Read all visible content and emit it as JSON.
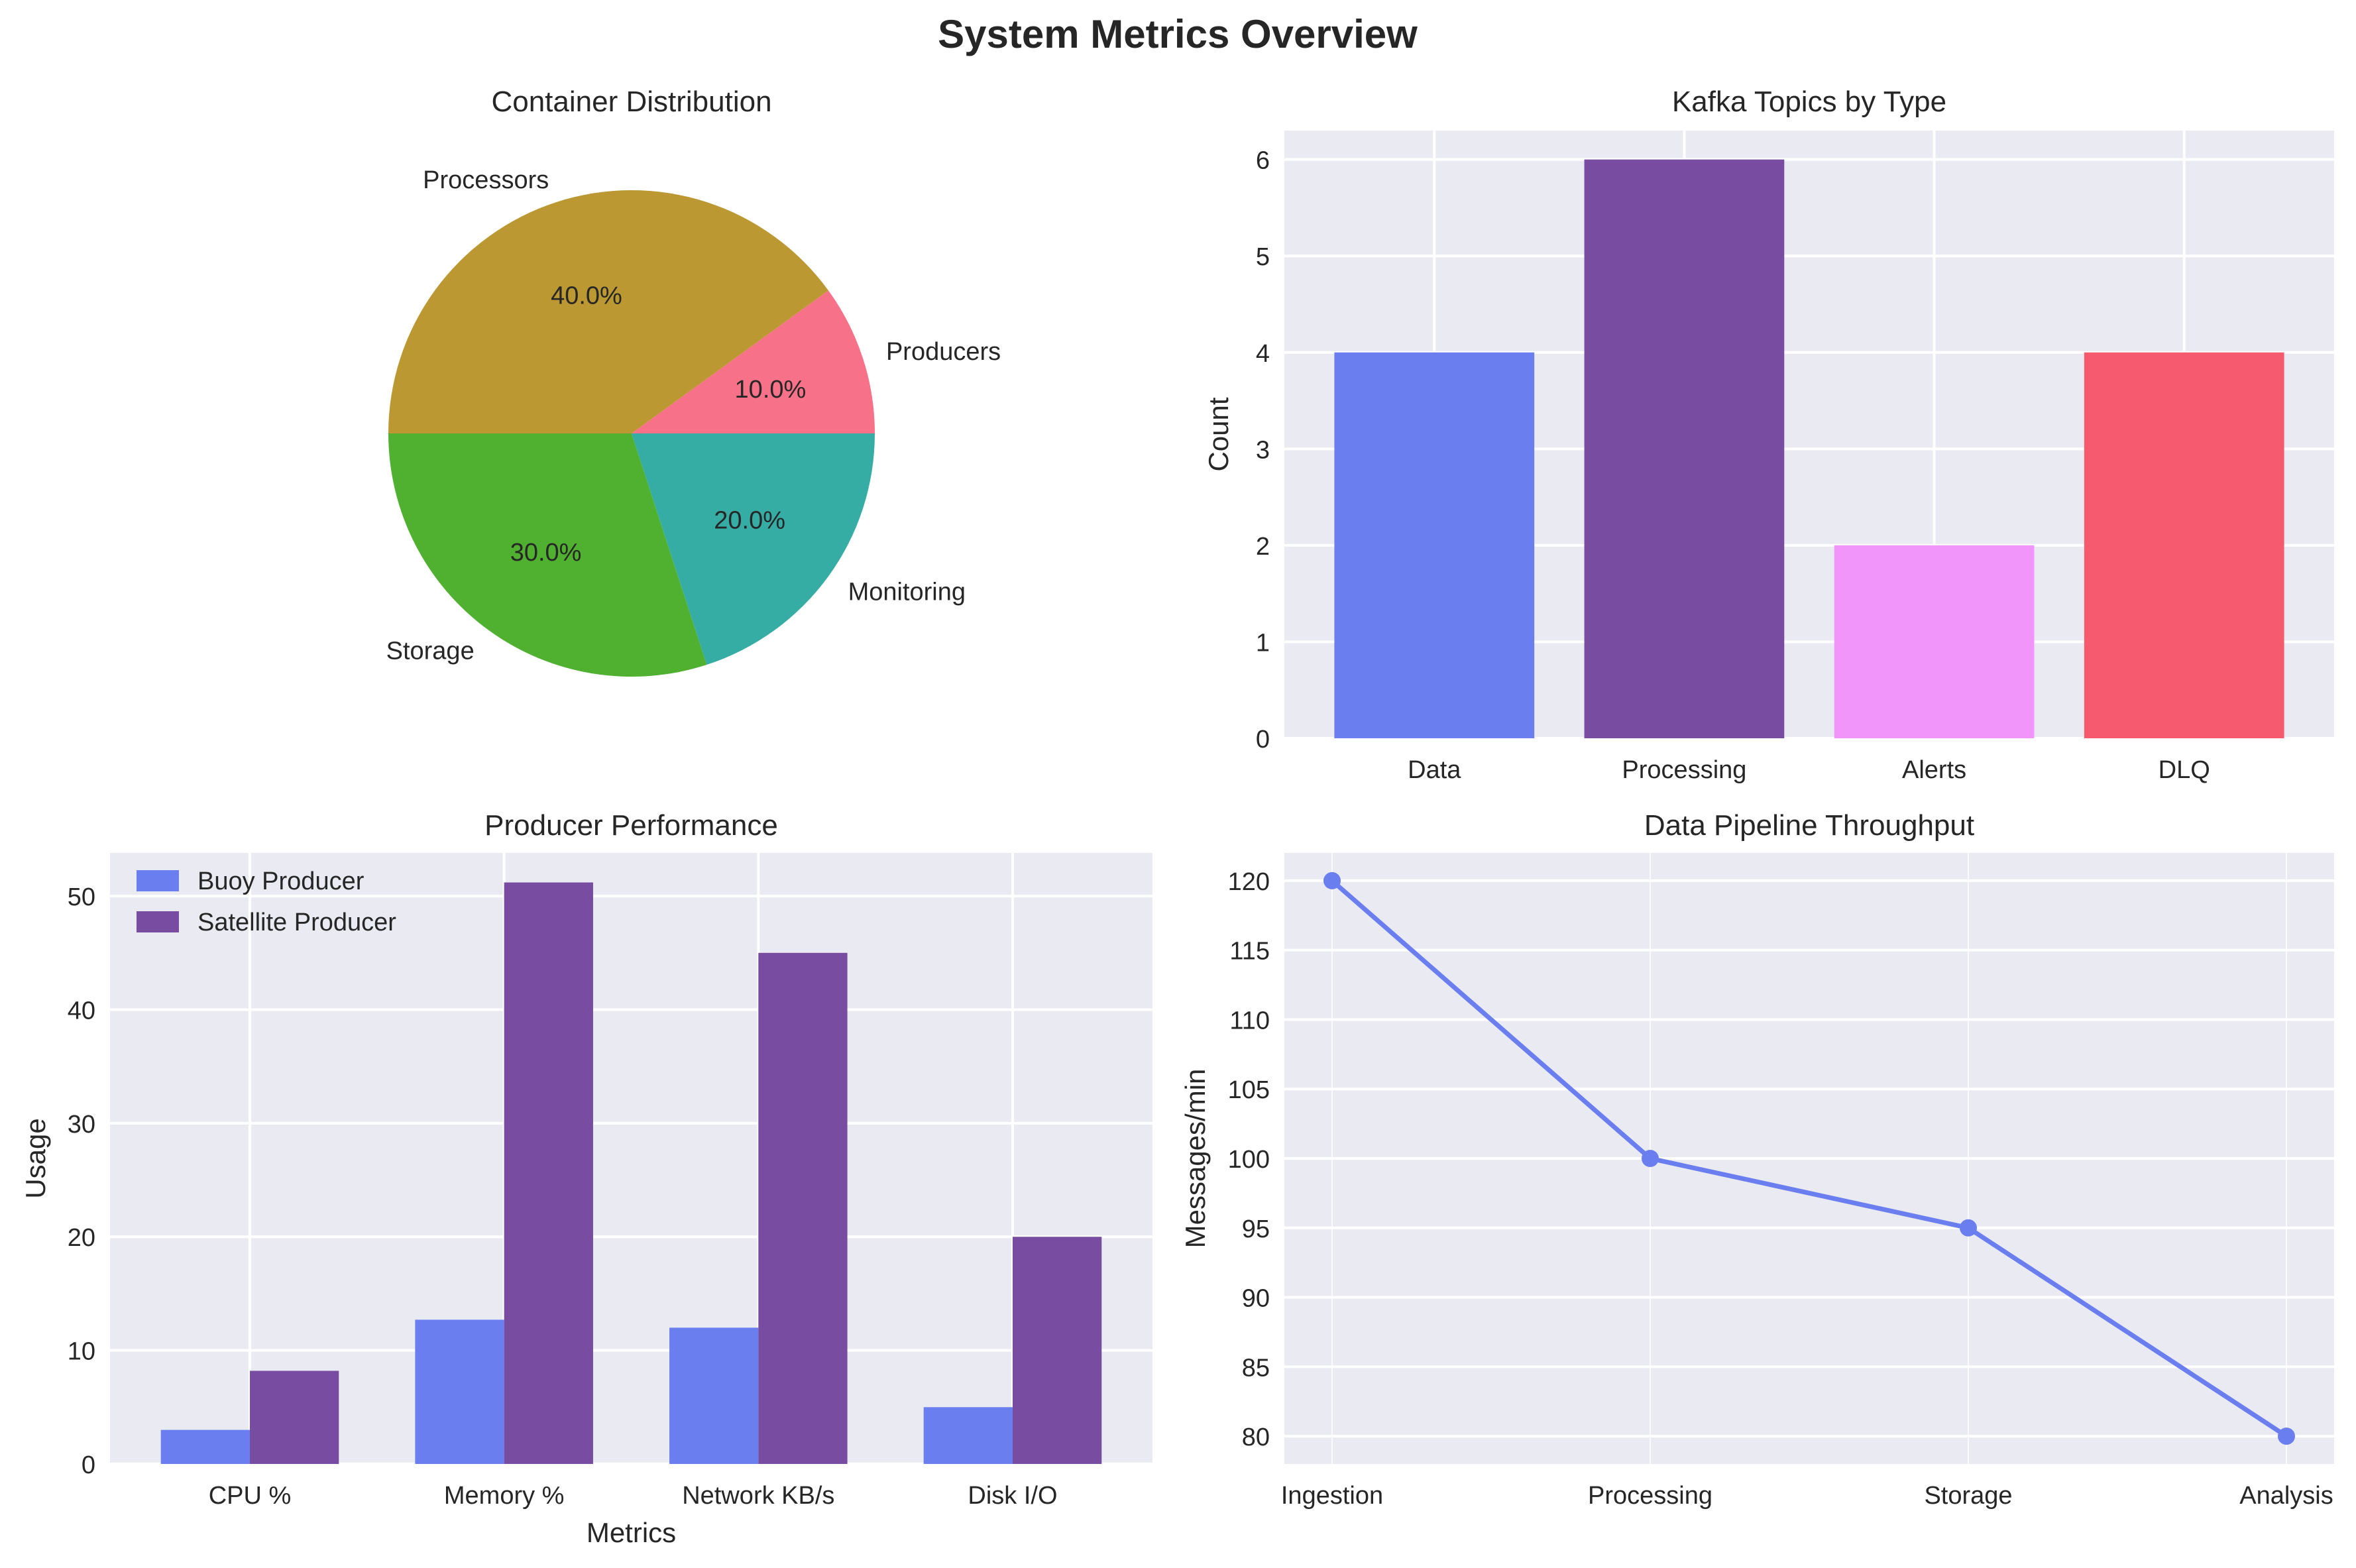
{
  "figure": {
    "title": "System Metrics Overview"
  },
  "chart_data": [
    {
      "type": "pie",
      "title": "Container Distribution",
      "labels": [
        "Producers",
        "Processors",
        "Storage",
        "Monitoring"
      ],
      "values": [
        10,
        40,
        30,
        20
      ],
      "pct_labels": [
        "10.0%",
        "40.0%",
        "30.0%",
        "20.0%"
      ],
      "colors": [
        "#f77189",
        "#bb9832",
        "#50b131",
        "#36ada4"
      ]
    },
    {
      "type": "bar",
      "title": "Kafka Topics by Type",
      "categories": [
        "Data",
        "Processing",
        "Alerts",
        "DLQ"
      ],
      "values": [
        4,
        6,
        2,
        4
      ],
      "colors": [
        "#6a7ef0",
        "#774ca1",
        "#f195fa",
        "#f65a6f"
      ],
      "xlabel": "",
      "ylabel": "Count",
      "ylim": [
        0,
        6.3
      ],
      "yticks": [
        0,
        1,
        2,
        3,
        4,
        5,
        6
      ],
      "grid": true
    },
    {
      "type": "bar",
      "title": "Producer Performance",
      "categories": [
        "CPU %",
        "Memory %",
        "Network KB/s",
        "Disk I/O"
      ],
      "series": [
        {
          "name": "Buoy Producer",
          "values": [
            3.0,
            12.7,
            12.0,
            5.0
          ],
          "color": "#6a7ef0"
        },
        {
          "name": "Satellite Producer",
          "values": [
            8.2,
            51.2,
            45.0,
            20.0
          ],
          "color": "#774ca1"
        }
      ],
      "xlabel": "Metrics",
      "ylabel": "Usage",
      "ylim": [
        0,
        53.8
      ],
      "yticks": [
        0,
        10,
        20,
        30,
        40,
        50
      ],
      "legend": "upper-left",
      "grid": true
    },
    {
      "type": "line",
      "title": "Data Pipeline Throughput",
      "categories": [
        "Ingestion",
        "Processing",
        "Storage",
        "Analysis"
      ],
      "values": [
        120,
        100,
        95,
        80
      ],
      "color": "#6a7ef0",
      "xlabel": "",
      "ylabel": "Messages/min",
      "ylim": [
        78,
        122
      ],
      "yticks": [
        80,
        85,
        90,
        95,
        100,
        105,
        110,
        115,
        120
      ],
      "grid": true
    }
  ]
}
